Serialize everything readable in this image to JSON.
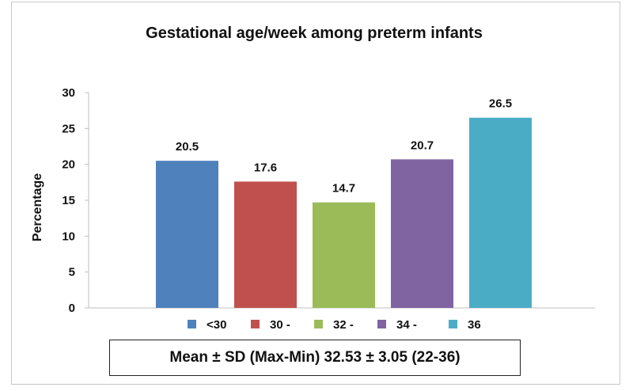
{
  "chart_data": {
    "type": "bar",
    "title": "Gestational age/week among preterm infants",
    "ylabel": "Percentage",
    "xlabel": "",
    "categories": [
      "<30",
      "30 -",
      "32 -",
      "34 -",
      "36"
    ],
    "values": [
      20.5,
      17.6,
      14.7,
      20.7,
      26.5
    ],
    "value_labels": [
      "20.5",
      "17.6",
      "14.7",
      "20.7",
      "26.5"
    ],
    "colors": [
      "#4f81bd",
      "#c0504d",
      "#9bbb59",
      "#8064a2",
      "#4bacc6"
    ],
    "ylim": [
      0,
      30
    ],
    "yticks": [
      0,
      5,
      10,
      15,
      20,
      25,
      30
    ],
    "grid": false,
    "legend_position": "bottom"
  },
  "stats_box": {
    "text": "Mean ± SD (Max-Min) 32.53 ± 3.05 (22-36)"
  }
}
